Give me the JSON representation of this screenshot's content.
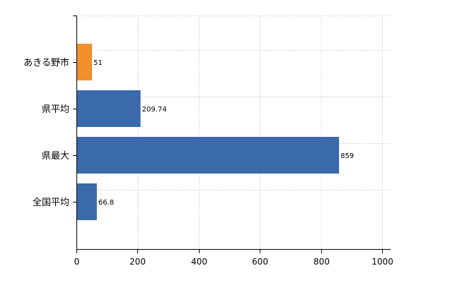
{
  "chart_data": {
    "type": "bar",
    "orientation": "horizontal",
    "categories": [
      "あきる野市",
      "県平均",
      "県最大",
      "全国平均"
    ],
    "values": [
      51,
      209.74,
      859,
      66.8
    ],
    "value_labels": [
      "51",
      "209.74",
      "859",
      "66.8"
    ],
    "bar_colors": [
      "#f0912c",
      "#3a6aaa",
      "#3a6aaa",
      "#3a6aaa"
    ],
    "xlim": [
      0,
      1000
    ],
    "xticks": [
      0,
      200,
      400,
      600,
      800,
      1000
    ],
    "xtick_labels": [
      "0",
      "200",
      "400",
      "600",
      "800",
      "1000"
    ],
    "title": "",
    "xlabel": "",
    "ylabel": "",
    "grid": true,
    "legend": "none"
  }
}
